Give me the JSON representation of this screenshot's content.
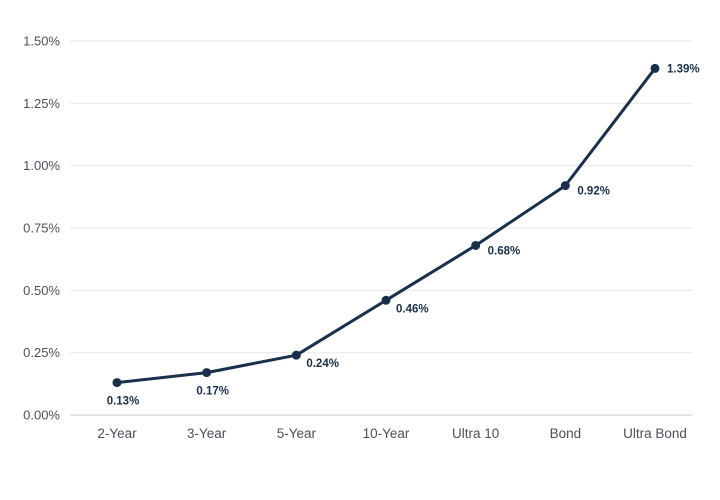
{
  "chart_data": {
    "type": "line",
    "title": "",
    "xlabel": "",
    "ylabel": "",
    "categories": [
      "2-Year",
      "3-Year",
      "5-Year",
      "10-Year",
      "Ultra 10",
      "Bond",
      "Ultra Bond"
    ],
    "values": [
      0.13,
      0.17,
      0.24,
      0.46,
      0.68,
      0.92,
      1.39
    ],
    "point_labels": [
      "0.13%",
      "0.17%",
      "0.24%",
      "0.46%",
      "0.68%",
      "0.92%",
      "1.39%"
    ],
    "label_placements": [
      "below",
      "below",
      "right-low",
      "right-low",
      "right",
      "right",
      "right-top"
    ],
    "y_ticks": [
      {
        "value": 0.0,
        "label": "0.00%"
      },
      {
        "value": 0.25,
        "label": "0.25%"
      },
      {
        "value": 0.5,
        "label": "0.50%"
      },
      {
        "value": 0.75,
        "label": "0.75%"
      },
      {
        "value": 1.0,
        "label": "1.00%"
      },
      {
        "value": 1.25,
        "label": "1.25%"
      },
      {
        "value": 1.5,
        "label": "1.50%"
      }
    ],
    "ylim": [
      0.0,
      1.5
    ],
    "grid": "horizontal-only",
    "legend": "none",
    "colors": {
      "line": "#1a2f4b",
      "marker": "#1a2f4b",
      "data_label": "#1a2f4b",
      "axis_text": "#4b5158",
      "gridline": "#e9eaec",
      "baseline": "#d8dbde",
      "background": "#ffffff"
    }
  }
}
